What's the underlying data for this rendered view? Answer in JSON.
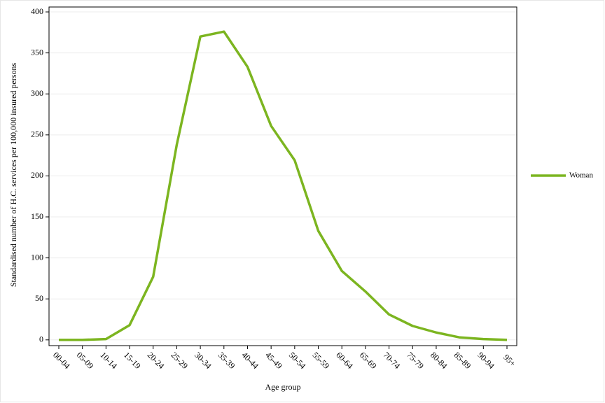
{
  "chart_data": {
    "type": "line",
    "x_label": "Age group",
    "y_label": "Standardised number of H.C. services per 100,000 insured persons",
    "categories": [
      "00-04",
      "05-09",
      "10-14",
      "15-19",
      "20-24",
      "25-29",
      "30-34",
      "35-39",
      "40-44",
      "45-49",
      "50-54",
      "55-59",
      "60-64",
      "65-69",
      "70-74",
      "75-79",
      "80-84",
      "85-89",
      "90-94",
      "95+"
    ],
    "series": [
      {
        "name": "Woman",
        "color": "#7cb520",
        "values": [
          0,
          0,
          1,
          18,
          77,
          238,
          370,
          376,
          333,
          261,
          219,
          133,
          84,
          59,
          31,
          17,
          9,
          3,
          1,
          0
        ]
      }
    ],
    "ylim": [
      -7,
      406
    ],
    "yticks": [
      0,
      50,
      100,
      150,
      200,
      250,
      300,
      350,
      400
    ],
    "grid": true,
    "legend": "right"
  }
}
